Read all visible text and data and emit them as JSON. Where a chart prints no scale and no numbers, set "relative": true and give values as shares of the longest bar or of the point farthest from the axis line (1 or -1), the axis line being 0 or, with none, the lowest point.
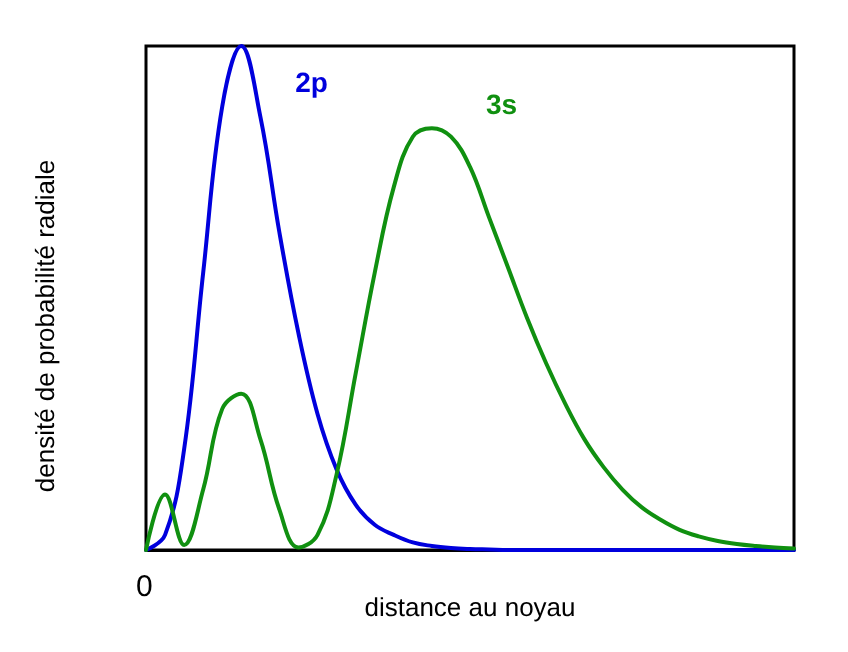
{
  "chart_data": {
    "type": "line",
    "relative": true,
    "xlabel": "distance au noyau",
    "ylabel": "densité de probabilité radiale",
    "annotations": [
      "0"
    ],
    "legend": false,
    "grid": false,
    "marker": "none",
    "line_style": "solid",
    "categories": [
      null,
      null,
      null,
      null,
      null,
      null,
      null,
      null,
      null,
      null,
      null,
      null,
      null,
      null,
      null,
      null,
      null,
      null,
      null,
      null,
      null,
      null,
      null,
      null,
      null,
      null,
      null,
      null,
      null,
      null,
      null,
      null,
      null,
      null,
      null
    ],
    "series": [
      {
        "name": "2p",
        "color": "#0000dd",
        "values": [
          0,
          0.03,
          0.2,
          0.55,
          0.88,
          1,
          0.86,
          0.63,
          0.43,
          0.27,
          0.16,
          0.09,
          0.05,
          0.03,
          0.015,
          0.008,
          0.004,
          0.002,
          0.001,
          0,
          0,
          0,
          0,
          0,
          0,
          0,
          0,
          0,
          0,
          0,
          0,
          0,
          0,
          0,
          0
        ]
      },
      {
        "name": "3s",
        "color": "#109010",
        "values": [
          0,
          0.11,
          0.01,
          0.12,
          0.28,
          0.31,
          0.22,
          0.08,
          0.005,
          0.03,
          0.15,
          0.35,
          0.55,
          0.72,
          0.82,
          0.837,
          0.82,
          0.76,
          0.66,
          0.56,
          0.46,
          0.37,
          0.29,
          0.22,
          0.165,
          0.12,
          0.085,
          0.06,
          0.04,
          0.027,
          0.018,
          0.012,
          0.008,
          0.005,
          0.003
        ]
      }
    ]
  }
}
